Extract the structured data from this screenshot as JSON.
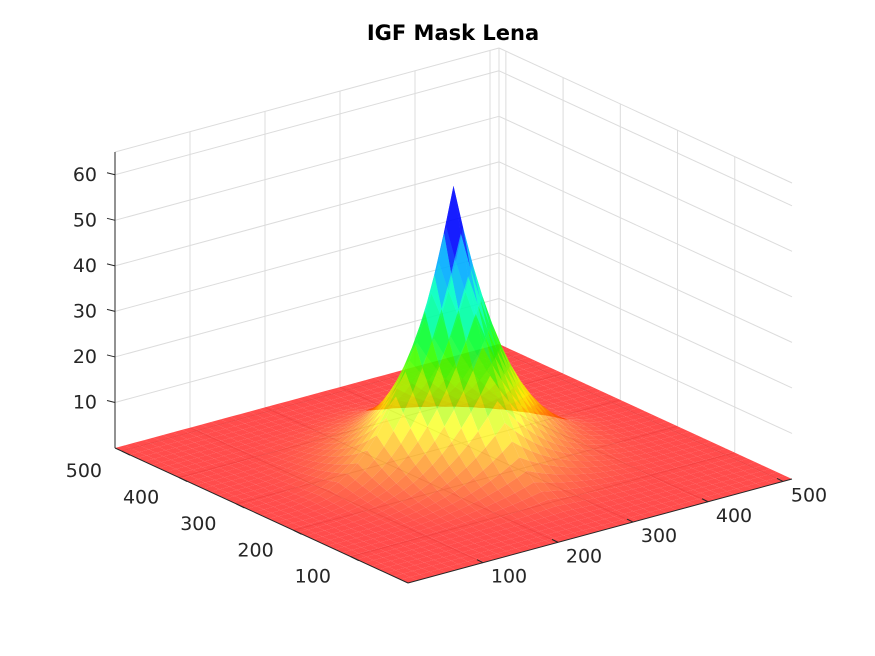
{
  "chart_data": {
    "type": "surface",
    "title": "IGF Mask Lena",
    "xlabel": "",
    "ylabel": "",
    "zlabel": "",
    "x_ticks": [
      "100",
      "200",
      "300",
      "400",
      "500"
    ],
    "y_ticks": [
      "100",
      "200",
      "300",
      "400",
      "500"
    ],
    "z_ticks": [
      "10",
      "20",
      "30",
      "40",
      "50",
      "60"
    ],
    "xlim": [
      0,
      512
    ],
    "ylim": [
      0,
      512
    ],
    "zlim": [
      0,
      65
    ],
    "grid": true,
    "colormap": "hsv",
    "alpha": 0.7,
    "surface": {
      "description_peak_location": [
        256,
        256
      ],
      "peak_value": 61,
      "corner_value": 0,
      "edge_midpoint_value": 0,
      "sample_values_along_diagonal": [
        {
          "t": 0,
          "z": 0
        },
        {
          "t": 64,
          "z": 0.5
        },
        {
          "t": 128,
          "z": 3
        },
        {
          "t": 192,
          "z": 9
        },
        {
          "t": 224,
          "z": 17
        },
        {
          "t": 240,
          "z": 26
        },
        {
          "t": 250,
          "z": 40
        },
        {
          "t": 256,
          "z": 61
        }
      ]
    }
  }
}
